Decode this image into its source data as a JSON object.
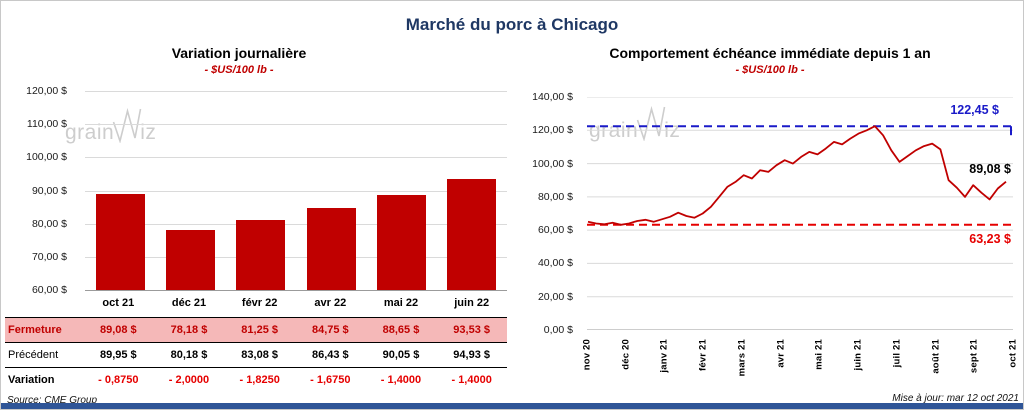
{
  "page": {
    "title": "Marché du porc à Chicago",
    "watermark_prefix": "grain",
    "watermark_suffix": "iz",
    "source": "Source: CME Group",
    "updated": "Mise à jour: mar 12 oct 2021"
  },
  "colors": {
    "navy": "#1F3864",
    "red": "#C00000",
    "bright_red": "#E60000",
    "pink": "#F5B8B8",
    "blue": "#1A1AC8",
    "grid": "#DADADA",
    "axis": "#9B9B9B",
    "footer_blue": "#2F5597",
    "watermark_gray": "#CDCDCD"
  },
  "chart_data": [
    {
      "type": "bar",
      "title": "Variation journalière",
      "subtitle": "- $US/100 lb -",
      "unit": "$US/100 lb",
      "categories": [
        "oct 21",
        "déc 21",
        "févr 22",
        "avr 22",
        "mai 22",
        "juin 22"
      ],
      "values": [
        89.08,
        78.18,
        81.25,
        84.75,
        88.65,
        93.53
      ],
      "ylim": [
        60,
        120
      ],
      "ytick_step": 10,
      "y_ticks": [
        "120,00 $",
        "110,00 $",
        "100,00 $",
        "90,00 $",
        "80,00 $",
        "70,00 $",
        "60,00 $"
      ],
      "bar_color": "#C00000",
      "grid": true,
      "legend": false
    },
    {
      "type": "line",
      "title": "Comportement échéance immédiate depuis 1 an",
      "subtitle": "- $US/100 lb -",
      "unit": "$US/100 lb",
      "x_labels": [
        "nov 20",
        "déc 20",
        "janv 21",
        "févr 21",
        "mars 21",
        "avr 21",
        "mai 21",
        "juin 21",
        "juil 21",
        "août 21",
        "sept 21",
        "oct 21"
      ],
      "values": [
        65,
        64,
        63.5,
        64.5,
        63.2,
        64,
        65.5,
        66.2,
        65,
        66.5,
        68,
        70.5,
        68.5,
        67.5,
        70,
        74,
        80,
        86,
        89,
        93,
        91,
        96,
        95,
        99,
        102,
        100,
        104,
        107,
        105.5,
        109,
        113,
        111.5,
        115,
        118,
        120,
        122.45,
        117,
        108,
        101,
        104.5,
        108,
        110.5,
        112,
        108.5,
        90,
        85.5,
        80,
        87,
        82.5,
        78.5,
        85,
        89.08
      ],
      "ylim": [
        0,
        140
      ],
      "ytick_step": 20,
      "y_ticks": [
        "140,00 $",
        "120,00 $",
        "100,00 $",
        "80,00 $",
        "60,00 $",
        "40,00 $",
        "20,00 $",
        "0,00 $"
      ],
      "series_color": "#C00000",
      "grid": true,
      "legend": false,
      "reference_lines": [
        {
          "value": 122.45,
          "label": "122,45 $",
          "color": "#1A1AC8",
          "style": "dashed",
          "end_tick": true
        },
        {
          "value": 63.23,
          "label": "63,23 $",
          "color": "#E60000",
          "style": "dashed",
          "end_tick": false
        }
      ],
      "end_label": {
        "value": 89.08,
        "label": "89,08 $"
      }
    }
  ],
  "table": {
    "rows": [
      {
        "label": "Fermeture",
        "highlight": true,
        "values": [
          "89,08 $",
          "78,18 $",
          "81,25 $",
          "84,75 $",
          "88,65 $",
          "93,53 $"
        ]
      },
      {
        "label": "Précédent",
        "highlight": false,
        "values": [
          "89,95 $",
          "80,18 $",
          "83,08 $",
          "86,43 $",
          "90,05 $",
          "94,93 $"
        ]
      },
      {
        "label": "Variation",
        "highlight": false,
        "values": [
          "- 0,8750",
          "- 2,0000",
          "- 1,8250",
          "- 1,6750",
          "- 1,4000",
          "- 1,4000"
        ]
      }
    ]
  }
}
